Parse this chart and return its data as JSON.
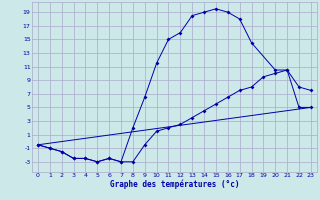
{
  "title": "Graphe des températures (°c)",
  "bg_color": "#cce8e8",
  "grid_color": "#aaaacc",
  "line_color": "#0000aa",
  "x_ticks": [
    0,
    1,
    2,
    3,
    4,
    5,
    6,
    7,
    8,
    9,
    10,
    11,
    12,
    13,
    14,
    15,
    16,
    17,
    18,
    19,
    20,
    21,
    22,
    23
  ],
  "y_ticks": [
    -3,
    -1,
    1,
    3,
    5,
    7,
    9,
    11,
    13,
    15,
    17,
    19
  ],
  "xlim": [
    -0.5,
    23.5
  ],
  "ylim": [
    -4.5,
    20.5
  ],
  "line1_x": [
    0,
    1,
    2,
    3,
    4,
    5,
    6,
    7,
    8,
    9,
    10,
    11,
    12,
    13,
    14,
    15,
    16,
    17,
    18,
    20,
    21,
    22,
    23
  ],
  "line1_y": [
    -0.5,
    -1.0,
    -1.5,
    -2.5,
    -2.5,
    -3.0,
    -2.5,
    -3.0,
    2.0,
    6.5,
    11.5,
    15.0,
    16.0,
    18.5,
    19.0,
    19.5,
    19.0,
    18.0,
    14.5,
    10.5,
    10.5,
    8.0,
    7.5
  ],
  "line2_x": [
    0,
    1,
    2,
    3,
    4,
    5,
    6,
    7,
    8,
    9,
    10,
    11,
    12,
    13,
    14,
    15,
    16,
    17,
    18,
    19,
    20,
    21,
    22,
    23
  ],
  "line2_y": [
    -0.5,
    -1.0,
    -1.5,
    -2.5,
    -2.5,
    -3.0,
    -2.5,
    -3.0,
    -3.0,
    -0.5,
    1.5,
    2.0,
    2.5,
    3.5,
    4.5,
    5.5,
    6.5,
    7.5,
    8.0,
    9.5,
    10.0,
    10.5,
    5.0,
    5.0
  ],
  "line3_x": [
    0,
    23
  ],
  "line3_y": [
    -0.5,
    5.0
  ]
}
